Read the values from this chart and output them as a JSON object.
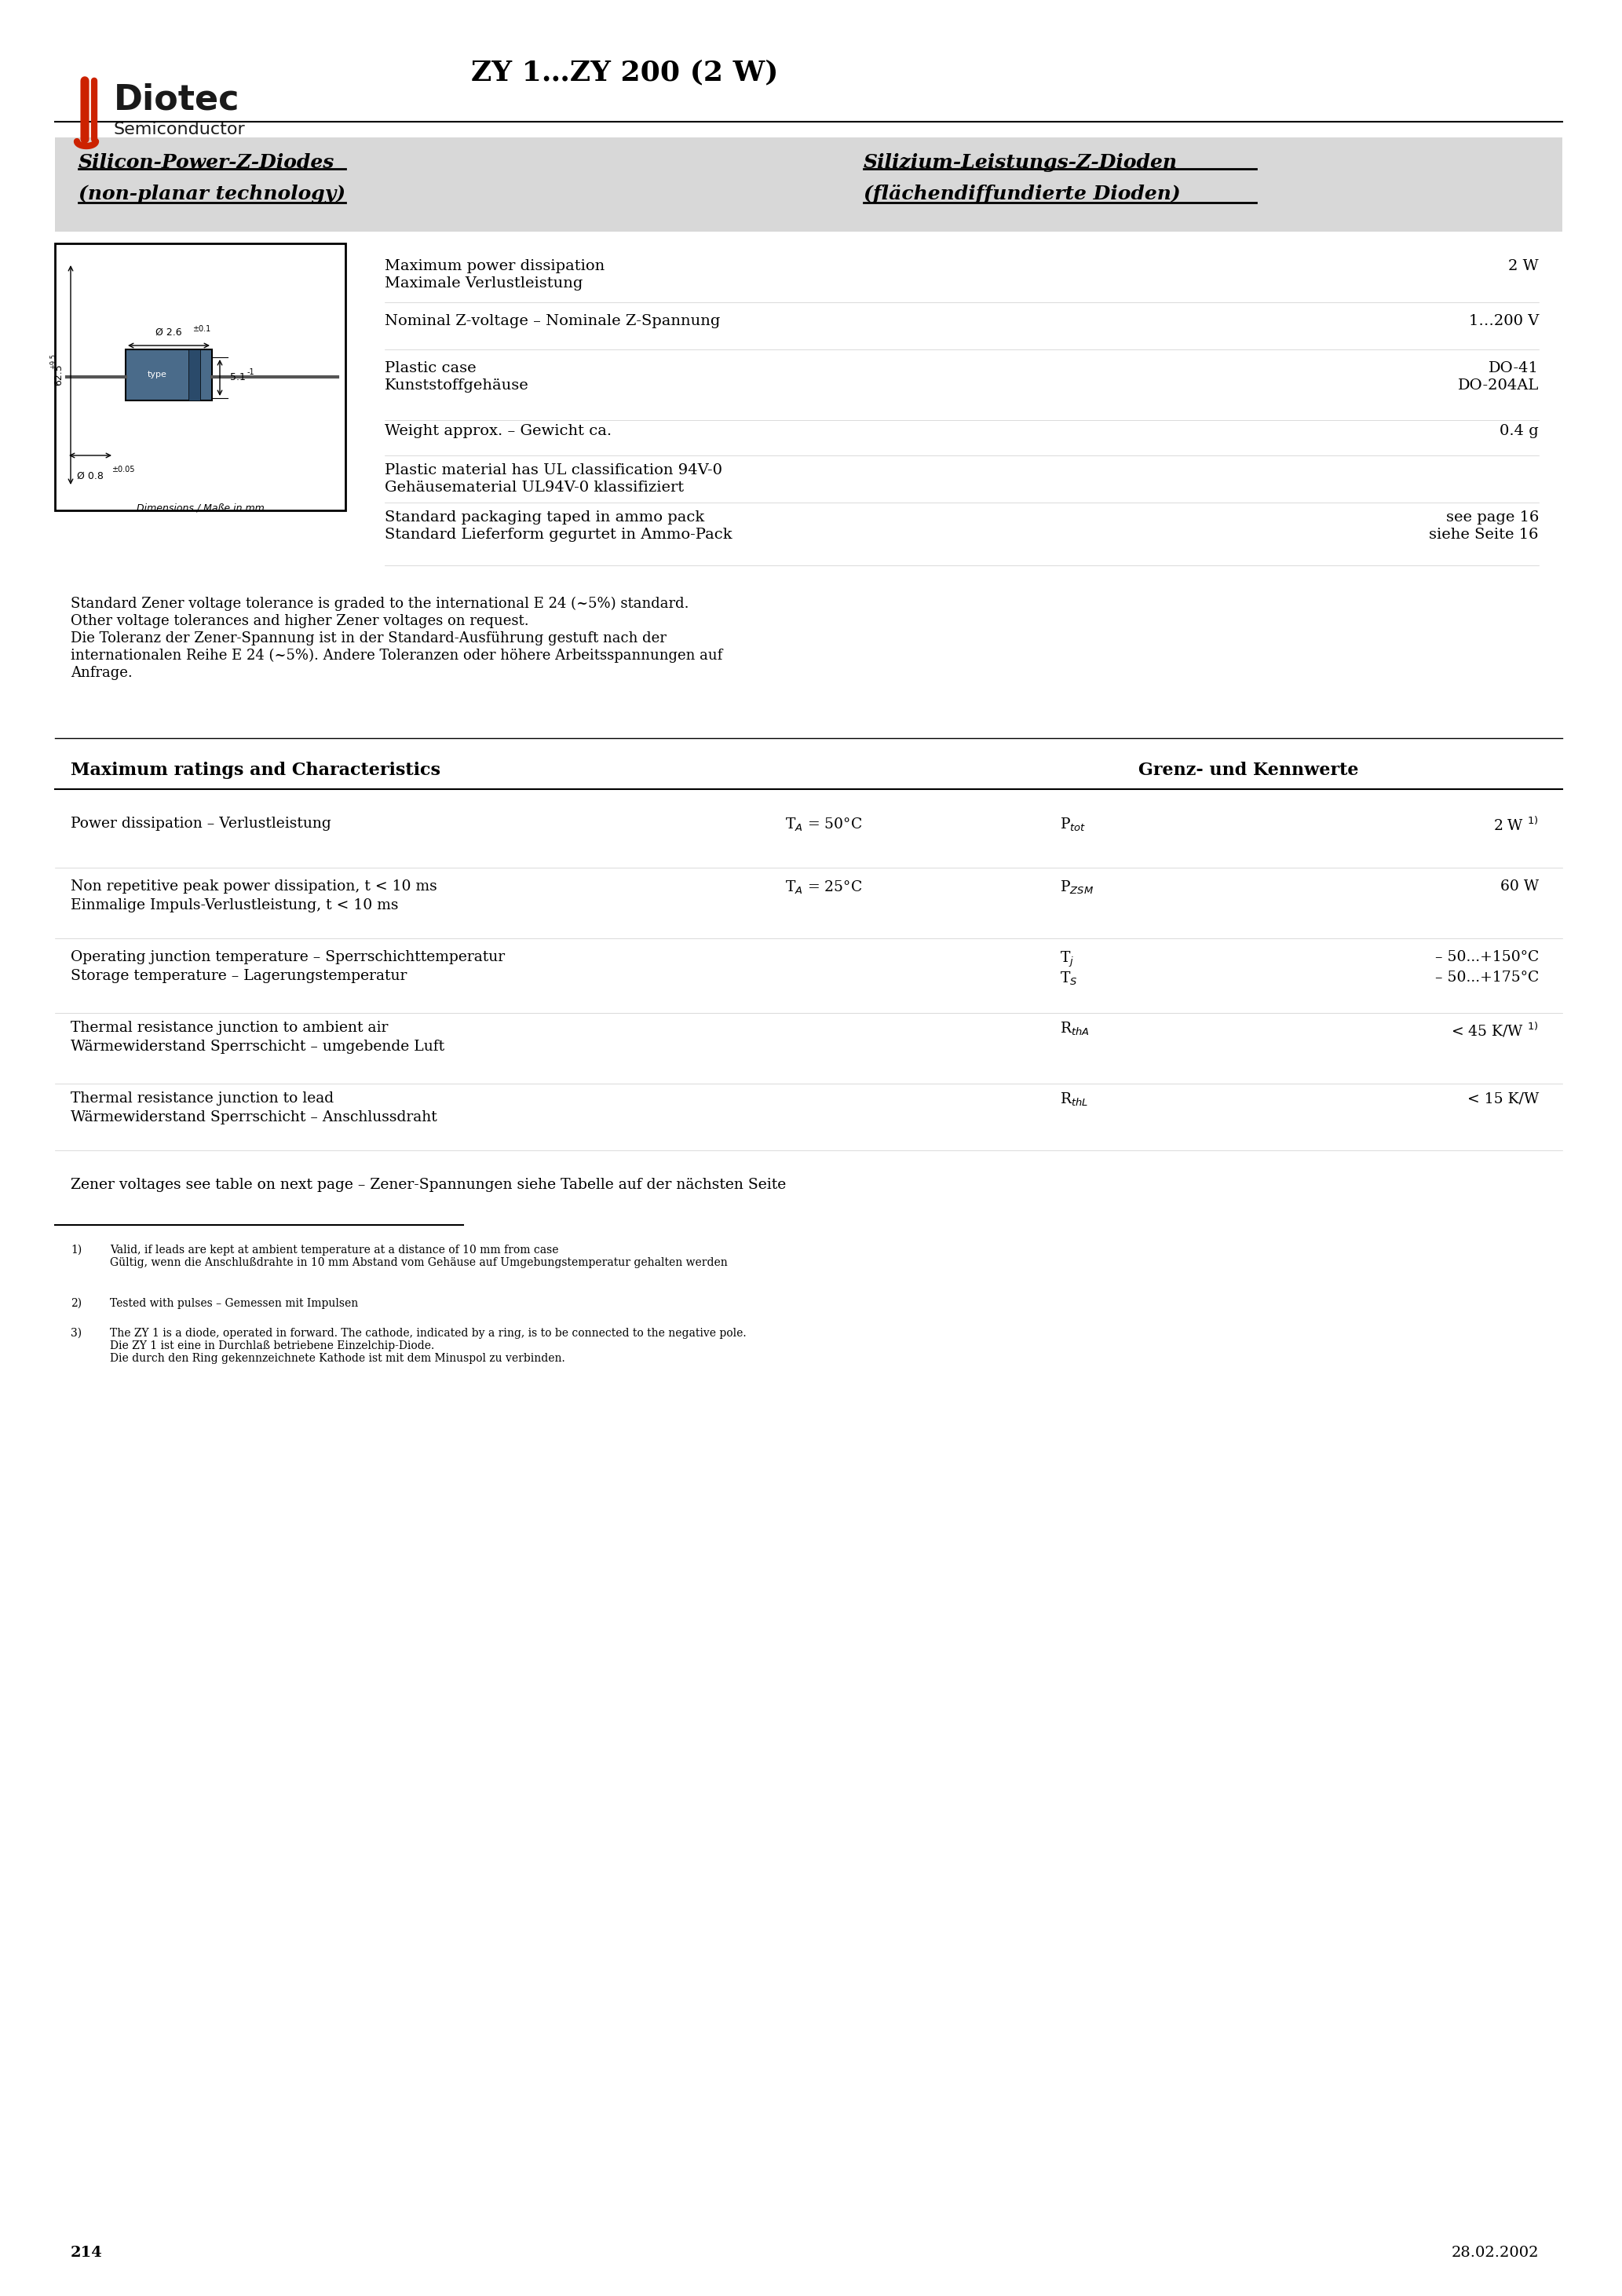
{
  "title": "ZY 1…ZY 200 (2 W)",
  "company": "Diotec",
  "company_sub": "Semiconductor",
  "logo_color": "#cc2200",
  "bg_color": "#ffffff",
  "header_bg": "#e0e0e0",
  "text_color": "#000000",
  "page_number": "214",
  "date": "28.02.2002",
  "en_title1": "Silicon-Power-Z-Diodes",
  "en_title2": "(non-planar technology)",
  "de_title1": "Silizium-Leistungs-Z-Dioden",
  "de_title2": "(flächendiffundierte Dioden)",
  "specs": [
    {
      "label_en": "Maximum power dissipation",
      "label_de": "Maximale Verlustleistung",
      "value": "2 W",
      "param": ""
    },
    {
      "label_en": "Nominal Z-voltage – Nominale Z-Spannung",
      "label_de": "",
      "value": "1…200 V",
      "param": ""
    },
    {
      "label_en": "Plastic case",
      "label_de": "Kunststoffgehäuse",
      "value": "DO-41\nDO-204AL",
      "param": ""
    },
    {
      "label_en": "Weight approx. – Gewicht ca.",
      "label_de": "",
      "value": "0.4 g",
      "param": ""
    },
    {
      "label_en": "Plastic material has UL classification 94V-0",
      "label_de": "Gehäusematerial UL94V-0 klassifiziert",
      "value": "",
      "param": ""
    },
    {
      "label_en": "Standard packaging taped in ammo pack",
      "label_de": "Standard Lieferform gegurtet in Ammo-Pack",
      "value": "see page 16\nsiehe Seite 16",
      "param": ""
    }
  ],
  "note_text": "Standard Zener voltage tolerance is graded to the international E 24 (~5%) standard.\nOther voltage tolerances and higher Zener voltages on request.\nDie Toleranz der Zener-Spannung ist in der Standard-Ausführung gestuft nach der\ninternationalen Reihe E 24 (~5%). Andere Toleranzen oder höhere Arbeitsspannungen auf\nAnfrage.",
  "max_ratings_title_en": "Maximum ratings and Characteristics",
  "max_ratings_title_de": "Grenz- und Kennwerte",
  "ratings": [
    {
      "label_en": "Power dissipation – Verlustleistung",
      "label_de": "",
      "cond": "T_A = 50°C",
      "param": "P_tot",
      "value": "2 W¹⁾"
    },
    {
      "label_en": "Non repetitive peak power dissipation, t < 10 ms",
      "label_de": "Einmalige Impuls-Verlustleistung, t < 10 ms",
      "cond": "T_A = 25°C",
      "param": "P_ZSM",
      "value": "60 W"
    },
    {
      "label_en": "Operating junction temperature – Sperrschichttemperatur",
      "label_de": "Storage temperature – Lagerungstemperatur",
      "cond": "",
      "param": "T_j\nT_S",
      "value": "– 50...+150°C\n– 50...+175°C"
    },
    {
      "label_en": "Thermal resistance junction to ambient air",
      "label_de": "Wärmewiderstand Sperrschicht – umgebende Luft",
      "cond": "",
      "param": "R_thA",
      "value": "< 45 K/W¹⁾"
    },
    {
      "label_en": "Thermal resistance junction to lead",
      "label_de": "Wärmewiderstand Sperrschicht – Anschlußdraht",
      "cond": "",
      "param": "R_thL",
      "value": "< 15 K/W"
    }
  ],
  "zener_note": "Zener voltages see table on next page – Zener-Spannungen siehe Tabelle auf der nächsten Seite",
  "footnotes": [
    "¹⁾  Valid, if leads are kept at ambient temperature at a distance of 10 mm from case\n    Gültig, wenn die Anschlußdraht in 10 mm Abstand vom Gehäuse auf Umgebungstemperatur gehalten werden",
    "²⁾  Tested with pulses – Gemessen mit Impulsen",
    "³⁾  The ZY 1 is a diode, operated in forward. The cathode, indicated by a ring, is to be connected to the negative pole.\n    Die ZY 1 ist eine in Durchlaß betriebene Einzelchip-Diode.\n    Die durch den Ring gekennzeichnete Kathode ist mit dem Minuspol zu verbinden."
  ]
}
